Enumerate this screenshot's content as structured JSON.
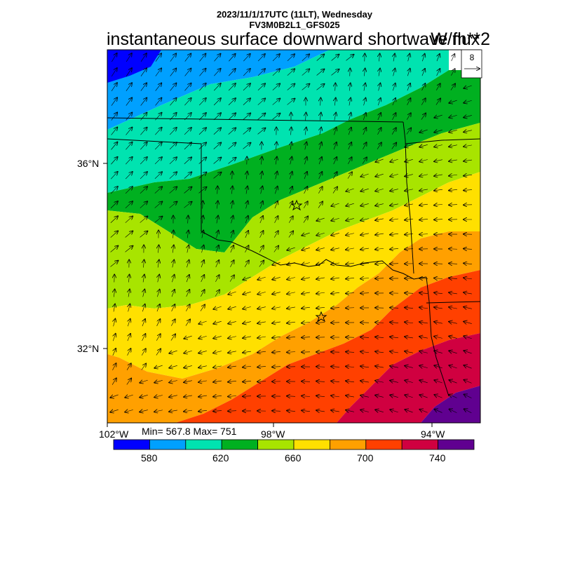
{
  "header": {
    "datetime": "2023/11/1/17UTC (11LT), Wednesday",
    "model": "FV3M0B2L1_GFS025"
  },
  "title": "instantaneous surface downward shortwave flux",
  "units": "W/m**2",
  "reference_vector": {
    "label": "8"
  },
  "axes": {
    "lat_labels": [
      "36°N",
      "32°N"
    ],
    "lon_labels": [
      "102°W",
      "98°W",
      "94°W"
    ]
  },
  "stats": {
    "text": "Min= 567.8 Max= 751"
  },
  "colorbar": {
    "colors": [
      "#0000ff",
      "#00a0ff",
      "#00e3b0",
      "#00b020",
      "#a8e400",
      "#ffe000",
      "#ffa000",
      "#ff4000",
      "#d00040",
      "#600090"
    ],
    "tick_labels": [
      "580",
      "620",
      "660",
      "700",
      "740"
    ]
  },
  "markers": {
    "shape": "star-icon",
    "count": 2
  }
}
